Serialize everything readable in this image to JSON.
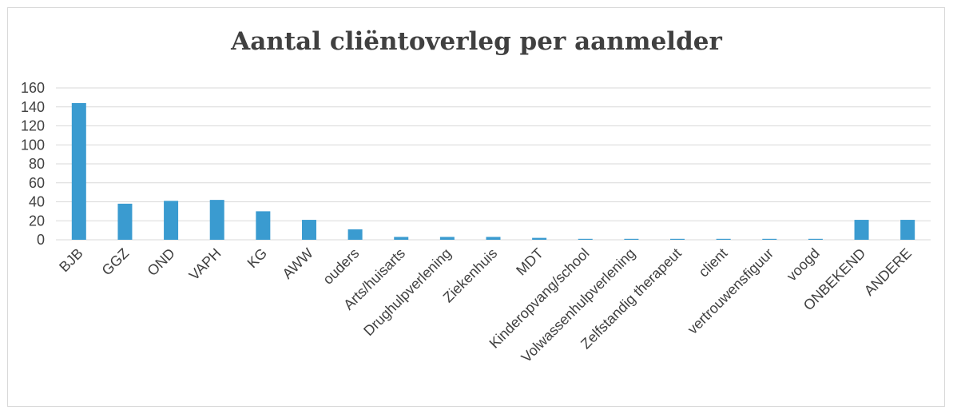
{
  "chart_data": {
    "type": "bar",
    "title": "Aantal cliëntoverleg per aanmelder",
    "xlabel": "",
    "ylabel": "",
    "ylim": [
      0,
      160
    ],
    "yticks": [
      0,
      20,
      40,
      60,
      80,
      100,
      120,
      140,
      160
    ],
    "grid": true,
    "legend": "none",
    "bar_color": "#3a9bd0",
    "categories": [
      "BJB",
      "GGZ",
      "OND",
      "VAPH",
      "KG",
      "AWW",
      "ouders",
      "Arts/huisarts",
      "Drughulpverlening",
      "Ziekenhuis",
      "MDT",
      "Kinderopvang/school",
      "Volwassenhulpverlening",
      "Zelfstandig therapeut",
      "client",
      "vertrouwensfiguur",
      "voogd",
      "ONBEKEND",
      "ANDERE"
    ],
    "values": [
      144,
      38,
      41,
      42,
      30,
      21,
      11,
      3,
      3,
      3,
      2,
      1,
      1,
      1,
      1,
      1,
      1,
      21,
      21
    ]
  }
}
